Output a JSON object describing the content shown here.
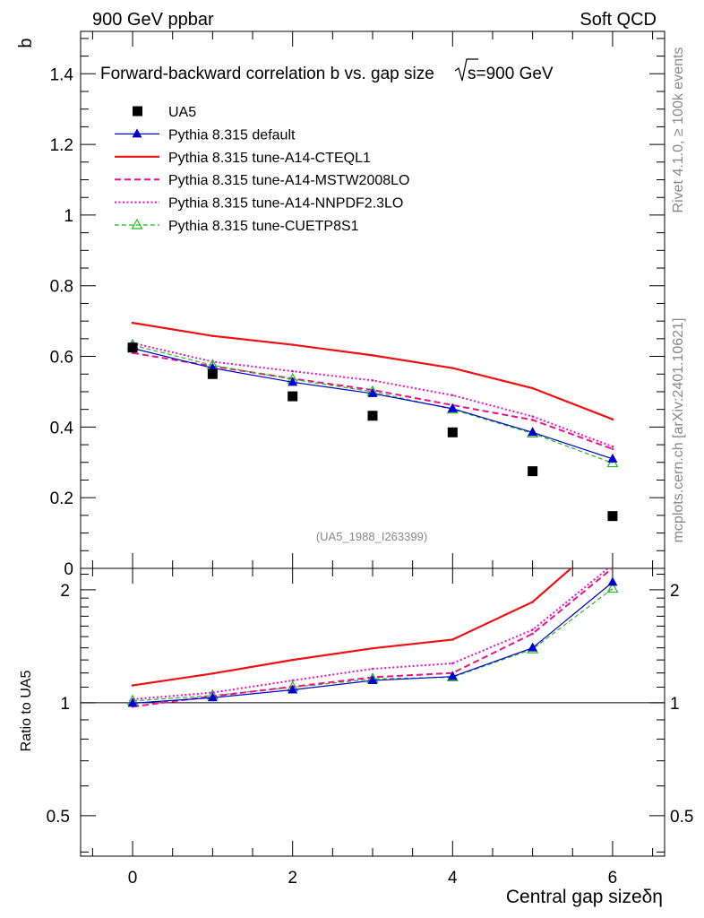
{
  "header": {
    "left": "900 GeV ppbar",
    "right": "Soft QCD"
  },
  "side_text": {
    "rivet": "Rivet 4.1.0, ≥ 100k events",
    "mcplots": "mcplots.cern.ch [arXiv:2401.10621]"
  },
  "chart_data": [
    {
      "type": "line",
      "panel": "main",
      "title": "Forward-backward correlation b  vs. gap size",
      "title_suffix": "s=900 GeV",
      "ylabel": "b",
      "xlabel": "Central gap sizeδη",
      "watermark": "(UA5_1988_I263399)",
      "xlim": [
        -0.65,
        6.65
      ],
      "ylim": [
        0,
        1.52
      ],
      "yticks": [
        0,
        0.2,
        0.4,
        0.6,
        0.8,
        1,
        1.2,
        1.4
      ],
      "ytick_labels": [
        "0",
        "0.2",
        "0.4",
        "0.6",
        "0.8",
        "1",
        "1.2",
        "1.4"
      ],
      "x": [
        0,
        1,
        2,
        3,
        4,
        5,
        6
      ],
      "series": [
        {
          "name": "UA5",
          "color": "#000000",
          "style": "square",
          "values": [
            0.625,
            0.55,
            0.487,
            0.432,
            0.385,
            0.275,
            0.148
          ]
        },
        {
          "name": "Pythia 8.315 default",
          "color": "#0000cc",
          "style": "solid-triangle",
          "values": [
            0.623,
            0.567,
            0.527,
            0.495,
            0.452,
            0.385,
            0.31
          ]
        },
        {
          "name": "Pythia 8.315 tune-A14-CTEQL1",
          "color": "#ee1111",
          "style": "solid-thick",
          "values": [
            0.695,
            0.658,
            0.633,
            0.603,
            0.567,
            0.51,
            0.422
          ]
        },
        {
          "name": "Pythia 8.315 tune-A14-MSTW2008LO",
          "color": "#ee1188",
          "style": "dashed",
          "values": [
            0.61,
            0.572,
            0.537,
            0.505,
            0.462,
            0.42,
            0.338
          ]
        },
        {
          "name": "Pythia 8.315 tune-A14-NNPDF2.3LO",
          "color": "#ee11cc",
          "style": "dotted",
          "values": [
            0.638,
            0.585,
            0.558,
            0.532,
            0.49,
            0.43,
            0.345
          ]
        },
        {
          "name": "Pythia 8.315 tune-CUETP8S1",
          "color": "#22bb22",
          "style": "dashed-open-triangle",
          "values": [
            0.632,
            0.575,
            0.535,
            0.5,
            0.45,
            0.382,
            0.298
          ]
        }
      ]
    },
    {
      "type": "line",
      "panel": "ratio",
      "ylabel": "Ratio to UA5",
      "yscale": "log",
      "xlim": [
        -0.65,
        6.65
      ],
      "ylim": [
        0.39,
        2.28
      ],
      "xticks": [
        0,
        2,
        4,
        6
      ],
      "xtick_labels": [
        "0",
        "2",
        "4",
        "6"
      ],
      "yticks": [
        0.5,
        1,
        2
      ],
      "ytick_labels": [
        "0.5",
        "1",
        "2"
      ],
      "x": [
        0,
        1,
        2,
        3,
        4,
        5,
        6
      ],
      "series": [
        {
          "name": "Pythia 8.315 default",
          "color": "#0000cc",
          "style": "solid-triangle",
          "values": [
            0.997,
            1.031,
            1.082,
            1.146,
            1.174,
            1.4,
            2.095
          ]
        },
        {
          "name": "Pythia 8.315 tune-A14-CTEQL1",
          "color": "#ee1111",
          "style": "solid-thick",
          "values": [
            1.112,
            1.196,
            1.3,
            1.396,
            1.473,
            1.855,
            2.85
          ]
        },
        {
          "name": "Pythia 8.315 tune-A14-MSTW2008LO",
          "color": "#ee1188",
          "style": "dashed",
          "values": [
            0.976,
            1.04,
            1.103,
            1.169,
            1.2,
            1.527,
            2.284
          ]
        },
        {
          "name": "Pythia 8.315 tune-A14-NNPDF2.3LO",
          "color": "#ee11cc",
          "style": "dotted",
          "values": [
            1.021,
            1.064,
            1.146,
            1.231,
            1.273,
            1.564,
            2.331
          ]
        },
        {
          "name": "Pythia 8.315 tune-CUETP8S1",
          "color": "#22bb22",
          "style": "dashed-open-triangle",
          "values": [
            1.011,
            1.045,
            1.099,
            1.157,
            1.169,
            1.389,
            2.014
          ]
        }
      ]
    }
  ]
}
